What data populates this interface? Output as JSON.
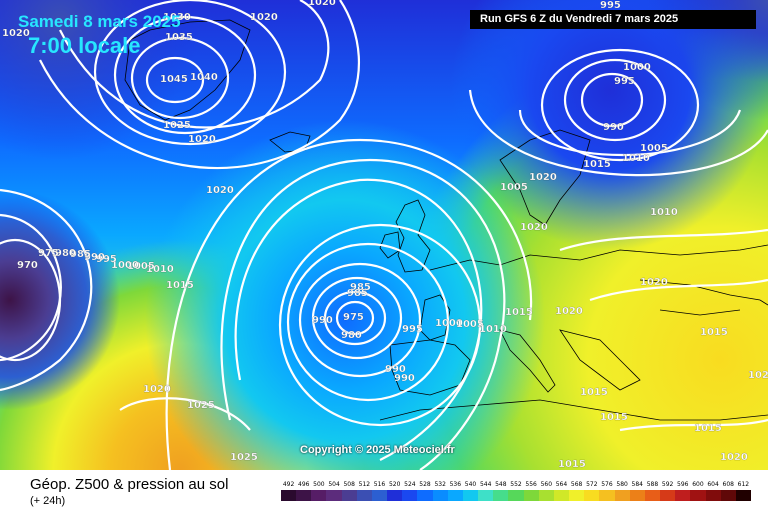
{
  "header": {
    "date_title": "Samedi 8 mars 2025",
    "time_title": "7:00 locale",
    "run_info": "Run GFS 6 Z du Vendredi 7 mars 2025"
  },
  "copyright": "Copyright © 2025 Meteociel.fr",
  "footer": {
    "title": "Géop. Z500 & pression au sol",
    "subtitle": "(+ 24h)"
  },
  "legend": {
    "labels": [
      "492",
      "496",
      "500",
      "504",
      "508",
      "512",
      "516",
      "520",
      "524",
      "528",
      "532",
      "536",
      "540",
      "544",
      "548",
      "552",
      "556",
      "560",
      "564",
      "568",
      "572",
      "576",
      "580",
      "584",
      "588",
      "592",
      "596",
      "600",
      "604",
      "608",
      "612"
    ],
    "colors": [
      "#2a0a2e",
      "#3d1347",
      "#561d66",
      "#5c2c7c",
      "#4b3d92",
      "#3b4fb3",
      "#2c5fd1",
      "#1f2fd8",
      "#1a48f0",
      "#0e6cff",
      "#0a8cff",
      "#0aa8ff",
      "#12c8f0",
      "#3ee0c8",
      "#46dd8c",
      "#56d85a",
      "#7ed83a",
      "#a8e030",
      "#d0e828",
      "#f0f02a",
      "#f8dc20",
      "#f5c020",
      "#f0a020",
      "#ec8018",
      "#e85e18",
      "#d63a18",
      "#bf1e1e",
      "#a01212",
      "#800c0c",
      "#600808",
      "#200000"
    ]
  },
  "isobars": [
    {
      "label": "1030"
    },
    {
      "label": "1035"
    },
    {
      "label": "1045"
    },
    {
      "label": "1040"
    },
    {
      "label": "1025"
    },
    {
      "label": "1020"
    },
    {
      "label": "1020"
    },
    {
      "label": "1020"
    },
    {
      "label": "1020"
    },
    {
      "label": "1015"
    },
    {
      "label": "1010"
    },
    {
      "label": "1005"
    },
    {
      "label": "1000"
    },
    {
      "label": "995"
    },
    {
      "label": "990"
    },
    {
      "label": "985"
    },
    {
      "label": "980"
    },
    {
      "label": "975"
    },
    {
      "label": "970"
    },
    {
      "label": "1000"
    },
    {
      "label": "995"
    },
    {
      "label": "990"
    },
    {
      "label": "1005"
    },
    {
      "label": "1010"
    },
    {
      "label": "1015"
    },
    {
      "label": "1020"
    },
    {
      "label": "1020"
    },
    {
      "label": "1025"
    },
    {
      "label": "1015"
    },
    {
      "label": "1015"
    },
    {
      "label": "1000"
    },
    {
      "label": "995"
    },
    {
      "label": "990"
    },
    {
      "label": "1005"
    },
    {
      "label": "1010"
    },
    {
      "label": "1015"
    },
    {
      "label": "1020"
    },
    {
      "label": "1020"
    },
    {
      "label": "1020"
    },
    {
      "label": "990"
    },
    {
      "label": "985"
    },
    {
      "label": "975"
    },
    {
      "label": "980"
    },
    {
      "label": "995"
    },
    {
      "label": "1000"
    },
    {
      "label": "1005"
    },
    {
      "label": "1010"
    },
    {
      "label": "1015"
    },
    {
      "label": "1020"
    },
    {
      "label": "1020"
    },
    {
      "label": "1015"
    },
    {
      "label": "1015"
    },
    {
      "label": "1020"
    },
    {
      "label": "1025"
    },
    {
      "label": "985"
    },
    {
      "label": "990"
    }
  ]
}
